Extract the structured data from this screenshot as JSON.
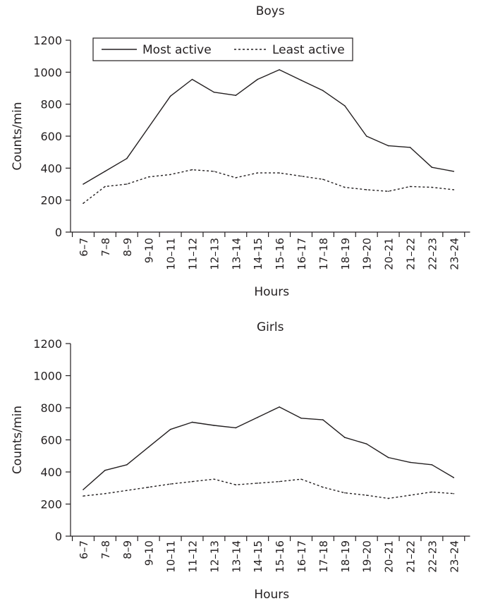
{
  "chart_data": [
    {
      "type": "line",
      "title": "Boys",
      "xlabel": "Hours",
      "ylabel": "Counts/min",
      "ylim": [
        0,
        1200
      ],
      "yticks": [
        0,
        200,
        400,
        600,
        800,
        1000,
        1200
      ],
      "grid": false,
      "legend": "top-left",
      "categories": [
        "6–7",
        "7–8",
        "8–9",
        "9–10",
        "10–11",
        "11–12",
        "12–13",
        "13–14",
        "14–15",
        "15–16",
        "16–17",
        "17–18",
        "18–19",
        "19–20",
        "20–21",
        "21–22",
        "22–23",
        "23–24"
      ],
      "series": [
        {
          "name": "Most active",
          "style": "solid",
          "values": [
            300,
            380,
            460,
            655,
            850,
            955,
            875,
            855,
            955,
            1015,
            950,
            885,
            790,
            600,
            540,
            530,
            405,
            380
          ]
        },
        {
          "name": "Least active",
          "style": "dashed",
          "values": [
            180,
            285,
            300,
            345,
            360,
            390,
            380,
            340,
            370,
            370,
            350,
            330,
            280,
            265,
            255,
            285,
            280,
            265
          ]
        }
      ]
    },
    {
      "type": "line",
      "title": "Girls",
      "xlabel": "Hours",
      "ylabel": "Counts/min",
      "ylim": [
        0,
        1200
      ],
      "yticks": [
        0,
        200,
        400,
        600,
        800,
        1000,
        1200
      ],
      "grid": false,
      "categories": [
        "6–7",
        "7–8",
        "8–9",
        "9–10",
        "10–11",
        "11–12",
        "12–13",
        "13–14",
        "14–15",
        "15–16",
        "16–17",
        "17–18",
        "18–19",
        "19–20",
        "20–21",
        "21–22",
        "22–23",
        "23–24"
      ],
      "series": [
        {
          "style": "solid",
          "values": [
            290,
            410,
            445,
            555,
            665,
            710,
            690,
            675,
            740,
            805,
            735,
            725,
            615,
            575,
            490,
            460,
            445,
            365
          ]
        },
        {
          "style": "dashed",
          "values": [
            250,
            265,
            285,
            305,
            325,
            340,
            355,
            320,
            330,
            340,
            355,
            305,
            270,
            255,
            235,
            255,
            275,
            265
          ]
        }
      ]
    }
  ],
  "colors": {
    "ink": "#231f20",
    "background": "#ffffff"
  }
}
